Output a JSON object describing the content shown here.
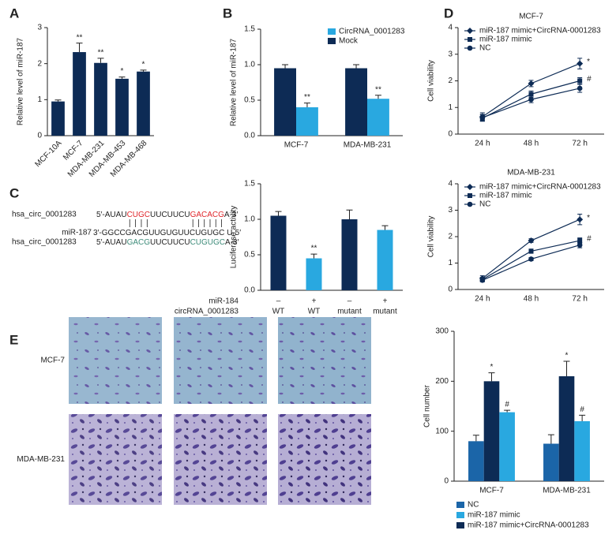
{
  "chart_data": [
    {
      "type": "bar",
      "panel": "A",
      "ylabel": "Relative level of miR-187",
      "categories": [
        "MCF-10A",
        "MCF-7",
        "MDA-MB-231",
        "MDA-MB-453",
        "MDA-MB-468"
      ],
      "values": [
        0.95,
        2.32,
        2.02,
        1.58,
        1.78
      ],
      "errors": [
        0.04,
        0.25,
        0.13,
        0.05,
        0.04
      ],
      "annotations": [
        null,
        "**",
        "**",
        "*",
        "*"
      ],
      "color": "#0d2b55",
      "ylim": [
        0,
        3
      ],
      "yticks": [
        0,
        1,
        2,
        3
      ]
    },
    {
      "type": "grouped_bar",
      "panel": "B",
      "ylabel": "Relative level of miR-187",
      "categories": [
        "MCF-7",
        "MDA-MB-231"
      ],
      "series": [
        {
          "name": "CircRNA_0001283",
          "color": "#29a8e0",
          "values": [
            0.4,
            0.52
          ],
          "errors": [
            0.06,
            0.05
          ],
          "annotations": [
            "**",
            "**"
          ]
        },
        {
          "name": "Mock",
          "color": "#0d2b55",
          "values": [
            0.95,
            0.95
          ],
          "errors": [
            0.05,
            0.05
          ]
        }
      ],
      "ylim": [
        0,
        1.5
      ],
      "yticks": [
        {
          "value": 0,
          "label": "0.0"
        },
        0.5,
        {
          "value": 1,
          "label": "1.0"
        },
        1.5
      ]
    },
    {
      "type": "bar",
      "panel": "C",
      "ylabel": "Luciferase activity",
      "category_rows": [
        {
          "name": "miR-184",
          "labels": [
            "–",
            "+",
            "–",
            "+"
          ]
        },
        {
          "name": "circRNA_0001283",
          "labels": [
            "WT",
            "WT",
            "mutant",
            "mutant"
          ]
        }
      ],
      "values": [
        1.05,
        0.45,
        1.0,
        0.85
      ],
      "errors": [
        0.06,
        0.06,
        0.13,
        0.06
      ],
      "annotations": [
        null,
        "**",
        null,
        null
      ],
      "colors": [
        "#0d2b55",
        "#29a8e0",
        "#0d2b55",
        "#29a8e0"
      ],
      "ylim": [
        0,
        1.5
      ],
      "yticks": [
        {
          "value": 0,
          "label": "0.0"
        },
        0.5,
        {
          "value": 1,
          "label": "1.0"
        },
        1.5
      ]
    },
    {
      "type": "line",
      "panel": "D",
      "title": "MCF-7",
      "ylabel": "Cell viability",
      "categories": [
        "24 h",
        "48 h",
        "72 h"
      ],
      "series": [
        {
          "name": "miR-187 mimic+CircRNA-0001283",
          "color": "#0d2b55",
          "marker": "diamond",
          "values": [
            0.65,
            1.9,
            2.65
          ],
          "errors": [
            0.15,
            0.12,
            0.2
          ],
          "annotation": "*"
        },
        {
          "name": "miR-187 mimic",
          "color": "#0d2b55",
          "marker": "square",
          "values": [
            0.6,
            1.5,
            2.0
          ],
          "errors": [
            0.12,
            0.12,
            0.12
          ],
          "annotation": "#"
        },
        {
          "name": "NC",
          "color": "#0d2b55",
          "marker": "circle",
          "values": [
            0.62,
            1.3,
            1.72
          ],
          "errors": [
            0.12,
            0.12,
            0.15
          ]
        }
      ],
      "ylim": [
        0,
        4
      ],
      "yticks": [
        0,
        1,
        2,
        3,
        4
      ]
    },
    {
      "type": "line",
      "title": "MDA-MB-231",
      "ylabel": "Cell viability",
      "categories": [
        "24 h",
        "48 h",
        "72 h"
      ],
      "series": [
        {
          "name": "miR-187 mimic+CircRNA-0001283",
          "color": "#0d2b55",
          "marker": "diamond",
          "values": [
            0.42,
            1.85,
            2.65
          ],
          "errors": [
            0.1,
            0.07,
            0.2
          ],
          "annotation": "*"
        },
        {
          "name": "miR-187 mimic",
          "color": "#0d2b55",
          "marker": "square",
          "values": [
            0.38,
            1.45,
            1.85
          ],
          "errors": [
            0.08,
            0.08,
            0.1
          ],
          "annotation": "#"
        },
        {
          "name": "NC",
          "color": "#0d2b55",
          "marker": "circle",
          "values": [
            0.35,
            1.15,
            1.68
          ],
          "errors": [
            0.06,
            0.06,
            0.1
          ]
        }
      ],
      "ylim": [
        0,
        4
      ],
      "yticks": [
        0,
        1,
        2,
        3,
        4
      ]
    },
    {
      "type": "grouped_bar",
      "ylabel": "Cell number",
      "categories": [
        "MCF-7",
        "MDA-MB-231"
      ],
      "series": [
        {
          "name": "NC",
          "color": "#1b65a8",
          "values": [
            80,
            75
          ],
          "errors": [
            12,
            18
          ]
        },
        {
          "name": "miR-187 mimic",
          "color": "#29a8e0",
          "values": [
            138,
            120
          ],
          "errors": [
            4,
            12
          ],
          "annotations": [
            "#",
            "#"
          ]
        },
        {
          "name": "miR-187 mimic+CircRNA-0001283",
          "color": "#0d2b55",
          "values": [
            200,
            210
          ],
          "errors": [
            17,
            30
          ],
          "annotations": [
            "*",
            "*"
          ]
        }
      ],
      "ylim": [
        0,
        300
      ],
      "yticks": [
        0,
        100,
        200,
        300
      ]
    }
  ],
  "sequence_alignment": {
    "rows": [
      {
        "name": "hsa_circ_0001283",
        "segments": [
          {
            "text": "5′-AUAU"
          },
          {
            "text": "CUGC",
            "color": "#e0262b"
          },
          {
            "text": "UUCUUCU"
          },
          {
            "text": "GACACG",
            "color": "#e0262b"
          },
          {
            "text": "A-3′"
          }
        ]
      },
      {
        "name": "miR-187",
        "segments": [
          {
            "text": "3′-GGCCGACGUUGUGUUCUGUGC U-5′"
          }
        ]
      },
      {
        "name": "hsa_circ_0001283",
        "segments": [
          {
            "text": "5′-AUAU"
          },
          {
            "text": "GACG",
            "color": "#3e8c7a"
          },
          {
            "text": "UUCUUCU"
          },
          {
            "text": "CUGUGC",
            "color": "#3e8c7a"
          },
          {
            "text": "A-3′"
          }
        ]
      }
    ]
  },
  "micrographs": {
    "panel": "E",
    "rows": [
      "MCF-7",
      "MDA-MB-231"
    ]
  }
}
